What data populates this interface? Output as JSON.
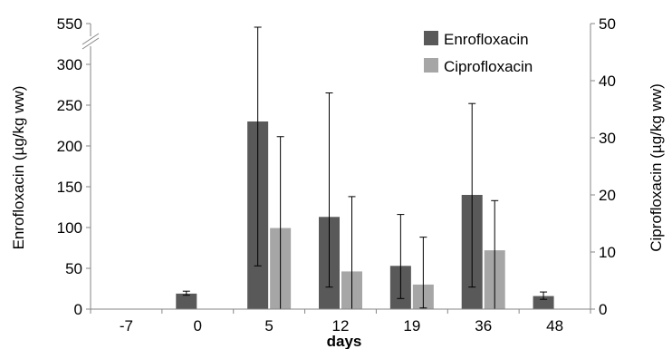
{
  "chart_data": {
    "type": "bar",
    "xlabel": "days",
    "ylabel_left": "Enrofloxacin (µg/kg ww)",
    "ylabel_right": "Ciprofloxacin (µg/kg ww)",
    "categories": [
      "-7",
      "0",
      "5",
      "12",
      "19",
      "36",
      "48"
    ],
    "left_axis": {
      "ylim": [
        0,
        550
      ],
      "break": {
        "from": 330,
        "to": 540
      },
      "ticks": [
        "0",
        "50",
        "100",
        "150",
        "200",
        "250",
        "300",
        "550"
      ],
      "tick_values": [
        0,
        50,
        100,
        150,
        200,
        250,
        300,
        550
      ]
    },
    "right_axis": {
      "ylim": [
        0,
        50
      ],
      "ticks": [
        "0",
        "10",
        "20",
        "30",
        "40",
        "50"
      ],
      "tick_values": [
        0,
        10,
        20,
        30,
        40,
        50
      ]
    },
    "legend_position": "top-right",
    "series": [
      {
        "name": "Enrofloxacin",
        "axis": "left",
        "color": "#595959",
        "values": [
          null,
          19,
          230,
          113,
          53,
          140,
          16
        ],
        "err_low": [
          null,
          17,
          53,
          27,
          13,
          27,
          12
        ],
        "err_high": [
          null,
          22,
          540,
          265,
          116,
          252,
          21
        ]
      },
      {
        "name": "Ciprofloxacin",
        "axis": "right",
        "color": "#a6a6a6",
        "values": [
          null,
          null,
          14.2,
          6.6,
          4.3,
          10.3,
          null
        ],
        "err_low": [
          null,
          null,
          null,
          null,
          0.2,
          null,
          null
        ],
        "err_high": [
          null,
          null,
          30.2,
          19.7,
          12.6,
          19.0,
          null
        ]
      }
    ]
  }
}
